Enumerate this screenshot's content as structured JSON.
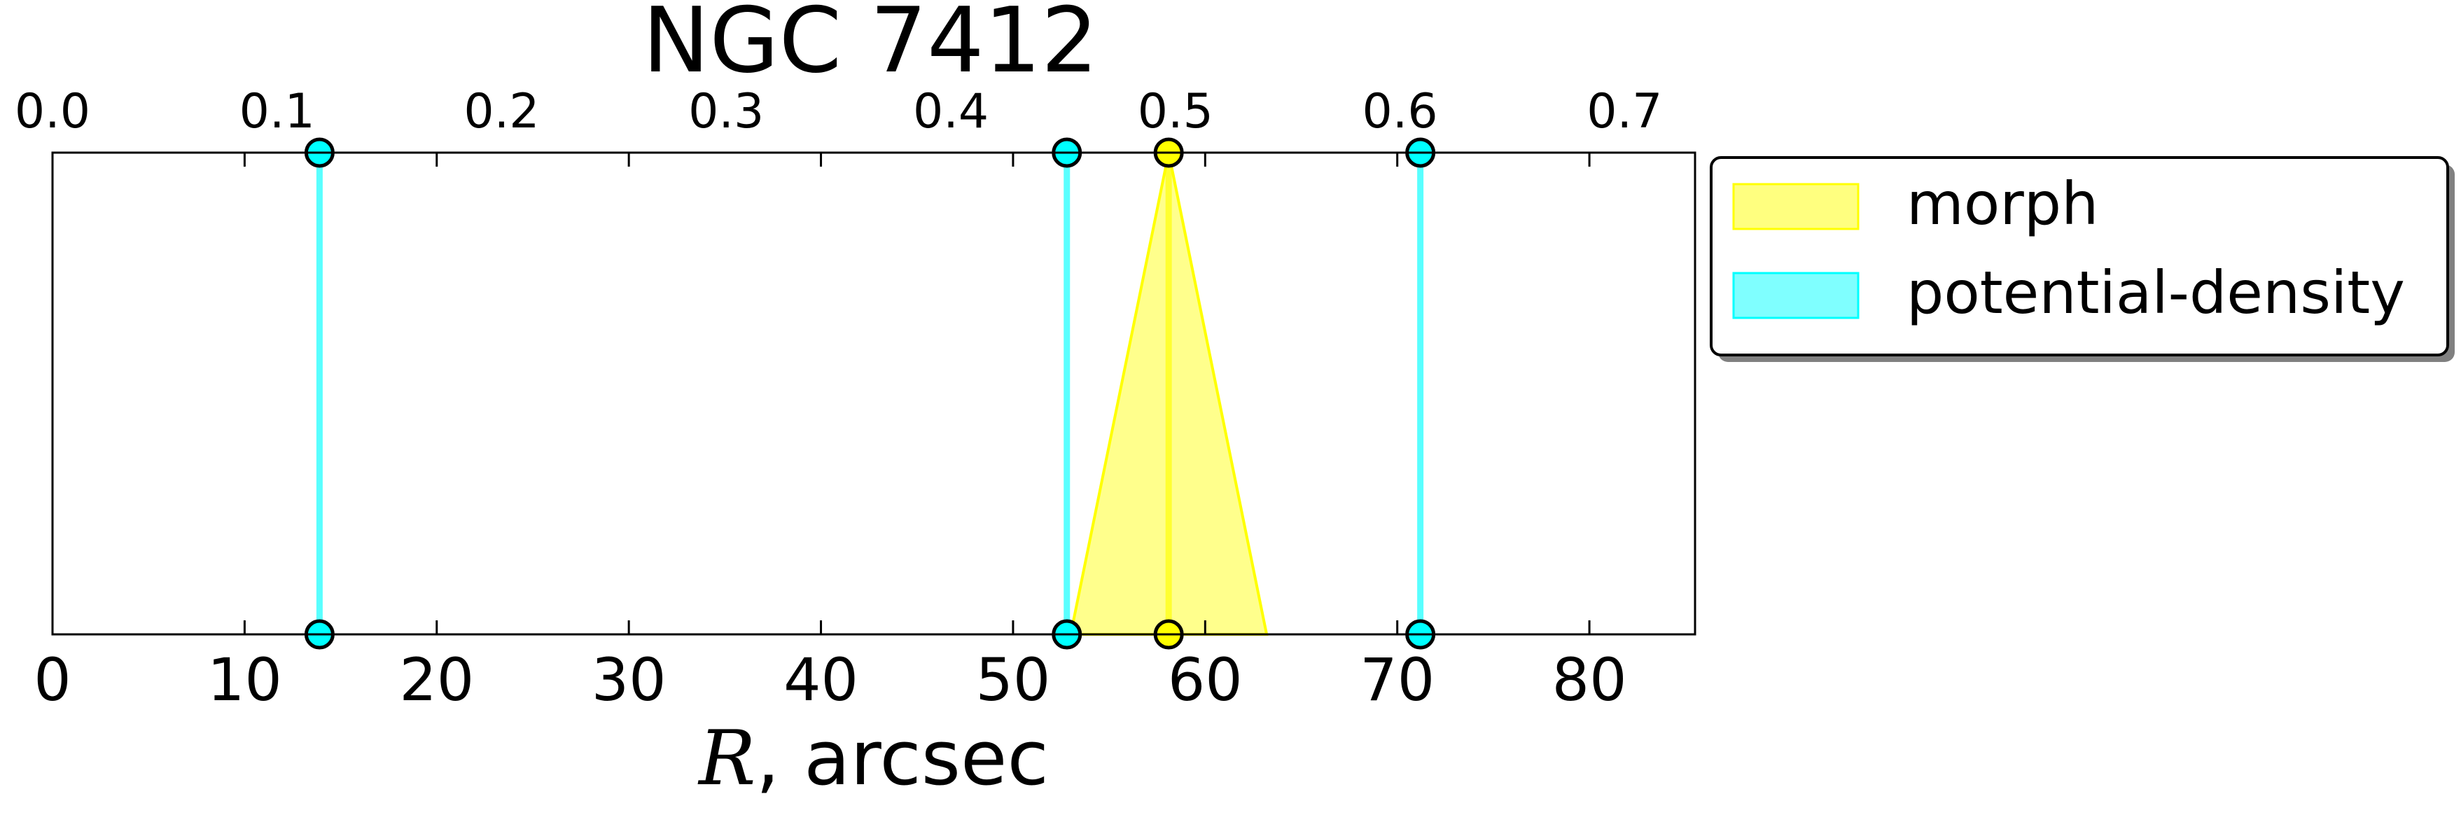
{
  "chart_data": {
    "type": "line",
    "title": "NGC 7412",
    "xlabel_var": "R",
    "xlabel_rest": ", arcsec",
    "xlim": [
      0,
      85.5
    ],
    "x_ticks": [
      0,
      10,
      20,
      30,
      40,
      50,
      60,
      70,
      80
    ],
    "x_tick_labels": [
      "0",
      "10",
      "20",
      "30",
      "40",
      "50",
      "60",
      "70",
      "80"
    ],
    "top_axis": {
      "xlim": [
        0,
        0.7314
      ],
      "ticks": [
        0.0,
        0.1,
        0.2,
        0.3,
        0.4,
        0.5,
        0.6,
        0.7
      ],
      "tick_labels": [
        "0.0",
        "0.1",
        "0.2",
        "0.3",
        "0.4",
        "0.5",
        "0.6",
        "0.7"
      ]
    },
    "legend": {
      "placement": "outside-right-top",
      "entries": [
        {
          "label": "morph",
          "color": "#ffff00"
        },
        {
          "label": "potential-density",
          "color": "#00ffff"
        }
      ]
    },
    "series": [
      {
        "name": "morph",
        "color": "#ffff00",
        "lines": [
          58.1
        ],
        "bands": [
          {
            "center": 58.1,
            "bottom_left": 53.0,
            "bottom_right": 63.2
          }
        ]
      },
      {
        "name": "potential-density",
        "color": "#00ffff",
        "lines": [
          13.9,
          52.8,
          71.2
        ],
        "bands": []
      }
    ],
    "grid": false
  }
}
